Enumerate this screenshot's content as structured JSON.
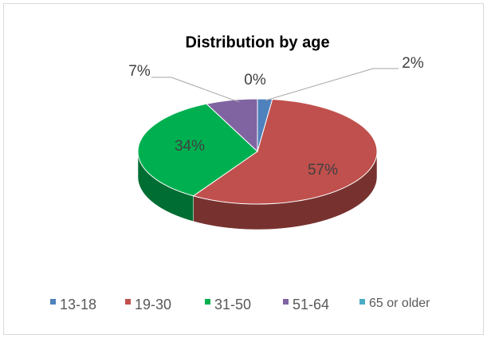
{
  "chart_data": {
    "type": "pie3d",
    "title": "Distribution by age",
    "categories": [
      "13-18",
      "19-30",
      "31-50",
      "51-64",
      "65 or older"
    ],
    "values": [
      2,
      57,
      34,
      7,
      0
    ],
    "value_labels": [
      "2%",
      "57%",
      "34%",
      "7%",
      "0%"
    ],
    "colors": [
      "#4f81bd",
      "#c0504d",
      "#00b050",
      "#8064a2",
      "#4bacc6"
    ],
    "legend": "bottom"
  }
}
